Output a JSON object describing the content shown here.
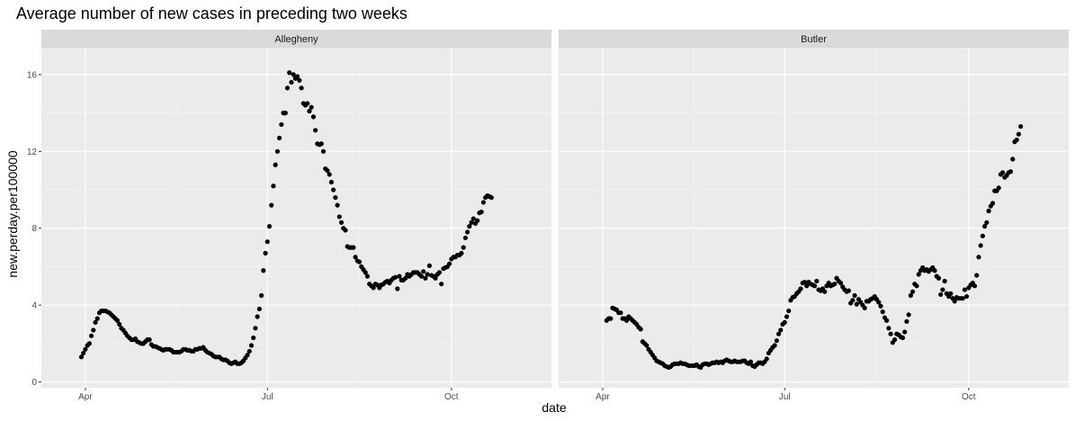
{
  "chart_data": {
    "type": "scatter",
    "title": "Average number of new cases in preceding two weeks",
    "xlabel": "date",
    "ylabel": "new.perday.per100000",
    "x_ticks": [
      {
        "label": "Apr",
        "date": "2020-04-01"
      },
      {
        "label": "Jul",
        "date": "2020-07-01"
      },
      {
        "label": "Oct",
        "date": "2020-10-01"
      }
    ],
    "xlim": [
      "2020-03-10",
      "2020-11-20"
    ],
    "y_ticks": [
      0,
      4,
      8,
      12,
      16
    ],
    "ylim": [
      -0.3,
      17.4
    ],
    "grid": true,
    "point_color": "#000000",
    "panel_background": "#ebebeb",
    "strip_background": "#d9d9d9",
    "panels": [
      {
        "name": "Allegheny",
        "start_date": "2020-03-30",
        "y": [
          1.3,
          1.5,
          1.7,
          1.9,
          2.0,
          2.4,
          2.7,
          3.1,
          3.3,
          3.6,
          3.7,
          3.7,
          3.7,
          3.65,
          3.6,
          3.5,
          3.4,
          3.3,
          3.2,
          3.0,
          2.8,
          2.7,
          2.55,
          2.4,
          2.3,
          2.2,
          2.2,
          2.25,
          2.1,
          2.05,
          2.0,
          2.0,
          2.1,
          2.2,
          2.2,
          1.95,
          1.85,
          1.85,
          1.8,
          1.75,
          1.7,
          1.65,
          1.7,
          1.7,
          1.7,
          1.65,
          1.55,
          1.55,
          1.55,
          1.55,
          1.6,
          1.7,
          1.7,
          1.65,
          1.65,
          1.6,
          1.6,
          1.7,
          1.7,
          1.75,
          1.75,
          1.8,
          1.65,
          1.55,
          1.5,
          1.45,
          1.35,
          1.3,
          1.3,
          1.3,
          1.2,
          1.15,
          1.15,
          1.1,
          1.0,
          0.95,
          1.0,
          1.05,
          0.95,
          0.95,
          1.0,
          1.1,
          1.25,
          1.4,
          1.6,
          1.9,
          2.3,
          2.8,
          3.4,
          3.8,
          4.5,
          5.8,
          6.7,
          7.3,
          8.1,
          9.2,
          10.2,
          11.3,
          12.0,
          12.7,
          13.4,
          14.0,
          14.0,
          15.3,
          16.1,
          15.6,
          16.0,
          15.8,
          15.9,
          15.7,
          15.3,
          14.5,
          14.4,
          14.5,
          14.1,
          14.3,
          13.8,
          13.1,
          12.4,
          12.35,
          12.4,
          12.0,
          11.1,
          11.0,
          10.8,
          10.4,
          10.0,
          9.6,
          9.2,
          8.6,
          8.3,
          8.0,
          7.9,
          7.05,
          7.0,
          7.0,
          7.0,
          6.5,
          6.3,
          6.25,
          6.0,
          5.85,
          5.7,
          5.5,
          5.1,
          5.0,
          4.9,
          5.1,
          5.05,
          4.9,
          5.05,
          5.1,
          5.2,
          5.25,
          5.15,
          5.3,
          5.4,
          5.45,
          4.85,
          5.5,
          5.3,
          5.3,
          5.4,
          5.6,
          5.5,
          5.6,
          5.7,
          5.7,
          5.7,
          5.6,
          5.5,
          5.75,
          5.4,
          5.6,
          6.05,
          5.55,
          5.5,
          5.4,
          5.6,
          5.7,
          5.1,
          5.9,
          5.95,
          6.0,
          6.15,
          6.4,
          6.5,
          6.5,
          6.6,
          6.6,
          6.7,
          7.0,
          7.5,
          7.8,
          8.1,
          8.3,
          8.5,
          8.25,
          8.4,
          8.8,
          8.85,
          9.35,
          9.6,
          9.7,
          9.65,
          9.6
        ]
      },
      {
        "name": "Butler",
        "start_date": "2020-04-03",
        "y": [
          3.2,
          3.3,
          3.3,
          3.85,
          3.8,
          3.75,
          3.6,
          3.6,
          3.3,
          3.3,
          3.2,
          3.4,
          3.3,
          3.2,
          3.1,
          3.0,
          2.85,
          2.75,
          2.1,
          2.0,
          1.9,
          1.7,
          1.55,
          1.4,
          1.25,
          1.1,
          1.05,
          1.0,
          0.95,
          0.85,
          0.8,
          0.75,
          0.8,
          0.9,
          0.95,
          0.95,
          0.95,
          1.0,
          0.95,
          0.95,
          0.9,
          0.85,
          0.85,
          0.85,
          0.85,
          0.9,
          0.8,
          0.75,
          0.9,
          0.95,
          0.95,
          0.9,
          0.95,
          1.0,
          1.0,
          1.05,
          1.0,
          1.05,
          1.0,
          1.1,
          1.15,
          1.1,
          1.05,
          1.05,
          1.1,
          1.05,
          1.05,
          1.05,
          1.1,
          1.1,
          1.0,
          0.95,
          1.05,
          0.85,
          0.8,
          0.9,
          1.0,
          1.0,
          0.95,
          1.05,
          1.2,
          1.5,
          1.65,
          1.8,
          1.9,
          2.15,
          2.5,
          2.7,
          3.0,
          3.1,
          3.4,
          3.7,
          4.25,
          4.4,
          4.45,
          4.6,
          4.7,
          4.85,
          5.15,
          5.2,
          5.0,
          5.2,
          5.1,
          5.05,
          5.0,
          5.25,
          4.8,
          4.75,
          4.85,
          4.7,
          5.0,
          5.15,
          5.0,
          5.05,
          5.1,
          5.4,
          5.25,
          5.15,
          4.95,
          4.8,
          4.7,
          4.75,
          4.1,
          4.25,
          4.5,
          4.05,
          4.3,
          4.15,
          4.0,
          3.85,
          4.2,
          4.2,
          4.3,
          4.35,
          4.45,
          4.3,
          4.15,
          3.95,
          3.65,
          3.35,
          3.2,
          2.8,
          2.5,
          2.05,
          2.2,
          2.5,
          2.45,
          2.35,
          2.3,
          2.6,
          3.15,
          3.5,
          4.5,
          4.7,
          5.1,
          5.0,
          5.6,
          5.8,
          5.95,
          5.8,
          5.85,
          5.75,
          5.85,
          5.95,
          5.8,
          5.5,
          5.4,
          4.55,
          4.8,
          5.25,
          4.6,
          4.45,
          4.6,
          4.35,
          4.2,
          4.4,
          4.35,
          4.35,
          4.35,
          4.8,
          4.45,
          4.9,
          5.05,
          5.15,
          5.0,
          5.55,
          6.5,
          7.1,
          7.6,
          8.1,
          8.3,
          8.9,
          9.15,
          9.3,
          9.95,
          9.95,
          10.1,
          10.8,
          10.9,
          10.65,
          10.75,
          10.9,
          10.95,
          11.6,
          12.5,
          12.6,
          12.9,
          13.3
        ]
      }
    ]
  }
}
